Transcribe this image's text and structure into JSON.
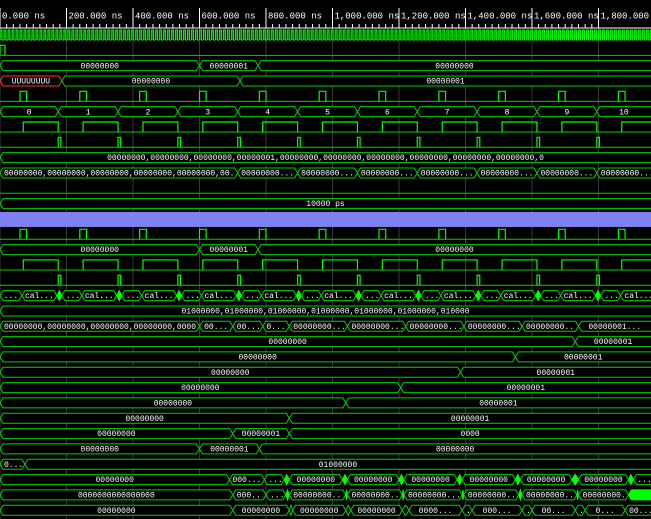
{
  "ruler": {
    "xlim": [
      0,
      1958
    ],
    "ticks": [
      {
        "value": 0,
        "label": "0.000 ns"
      },
      {
        "value": 200,
        "label": "200.000 ns"
      },
      {
        "value": 400,
        "label": "400.000 ns"
      },
      {
        "value": 600,
        "label": "600.000 ns"
      },
      {
        "value": 800,
        "label": "800.000 ns"
      },
      {
        "value": 1000,
        "label": "1,000.000 ns"
      },
      {
        "value": 1200,
        "label": "1,200.000 ns"
      },
      {
        "value": 1400,
        "label": "1,400.000 ns"
      },
      {
        "value": 1600,
        "label": "1,600.000 ns"
      },
      {
        "value": 1800,
        "label": "1,800.000 ns"
      }
    ]
  },
  "rows": [
    {
      "type": "clock",
      "period": 12
    },
    {
      "type": "bit",
      "highs": [
        [
          0,
          15
        ]
      ]
    },
    {
      "type": "bus",
      "segments": [
        {
          "t": 0,
          "label": "00000000"
        },
        {
          "t": 600,
          "label": "00000001"
        },
        {
          "t": 776,
          "label": "00000000"
        }
      ]
    },
    {
      "type": "bus",
      "segments": [
        {
          "t": 0,
          "label": "UUUUUUUU",
          "color": "#ff3030"
        },
        {
          "t": 186,
          "label": "00000000"
        },
        {
          "t": 722,
          "label": "00000001"
        }
      ]
    },
    {
      "type": "bit",
      "highs": [
        [
          60,
          80
        ],
        [
          240,
          260
        ],
        [
          420,
          440
        ],
        [
          600,
          620
        ],
        [
          780,
          800
        ],
        [
          960,
          980
        ],
        [
          1140,
          1160
        ],
        [
          1320,
          1340
        ],
        [
          1500,
          1520
        ],
        [
          1680,
          1700
        ],
        [
          1860,
          1880
        ]
      ]
    },
    {
      "type": "bus",
      "segments": [
        {
          "t": 0,
          "label": "0"
        },
        {
          "t": 175,
          "label": "1"
        },
        {
          "t": 355,
          "label": "2"
        },
        {
          "t": 535,
          "label": "3"
        },
        {
          "t": 715,
          "label": "4"
        },
        {
          "t": 895,
          "label": "5"
        },
        {
          "t": 1075,
          "label": "6"
        },
        {
          "t": 1255,
          "label": "7"
        },
        {
          "t": 1435,
          "label": "8"
        },
        {
          "t": 1615,
          "label": "9"
        },
        {
          "t": 1795,
          "label": "10"
        }
      ]
    },
    {
      "type": "bit",
      "highs": [
        [
          70,
          175
        ],
        [
          250,
          355
        ],
        [
          430,
          535
        ],
        [
          610,
          715
        ],
        [
          790,
          895
        ],
        [
          970,
          1075
        ],
        [
          1150,
          1255
        ],
        [
          1330,
          1435
        ],
        [
          1510,
          1615
        ],
        [
          1690,
          1795
        ],
        [
          1870,
          1975
        ]
      ]
    },
    {
      "type": "bit",
      "highs": [
        [
          175,
          183
        ],
        [
          355,
          363
        ],
        [
          535,
          543
        ],
        [
          715,
          723
        ],
        [
          895,
          903
        ],
        [
          1075,
          1083
        ],
        [
          1255,
          1263
        ],
        [
          1435,
          1443
        ],
        [
          1615,
          1623
        ],
        [
          1795,
          1803
        ]
      ]
    },
    {
      "type": "bus",
      "segments": [
        {
          "t": 0,
          "label": "00000000,00000000,00000000,00000001,00000000,00000000,00000000,00000000,00000000,00000000,0"
        }
      ]
    },
    {
      "type": "bus",
      "segments": [
        {
          "t": 0,
          "label": "00000000,00000000,00000000,00000000,00000000,00..."
        },
        {
          "t": 715,
          "label": "00000000..."
        },
        {
          "t": 895,
          "label": "00000000..."
        },
        {
          "t": 1075,
          "label": "00000000..."
        },
        {
          "t": 1255,
          "label": "00000000..."
        },
        {
          "t": 1435,
          "label": "00000000..."
        },
        {
          "t": 1615,
          "label": "00000000..."
        },
        {
          "t": 1795,
          "label": "00000000..."
        }
      ]
    },
    {
      "type": "bit",
      "highs": []
    },
    {
      "type": "bus",
      "segments": [
        {
          "t": 0,
          "label": "10000 ps"
        }
      ]
    },
    {
      "type": "divider",
      "color": "#8080f0"
    },
    {
      "type": "bit",
      "highs": [
        [
          60,
          80
        ],
        [
          240,
          260
        ],
        [
          420,
          440
        ],
        [
          600,
          620
        ],
        [
          780,
          800
        ],
        [
          960,
          980
        ],
        [
          1140,
          1160
        ],
        [
          1320,
          1340
        ],
        [
          1500,
          1520
        ],
        [
          1680,
          1700
        ],
        [
          1860,
          1880
        ]
      ]
    },
    {
      "type": "bus",
      "segments": [
        {
          "t": 0,
          "label": "00000000"
        },
        {
          "t": 600,
          "label": "00000001"
        },
        {
          "t": 776,
          "label": "00000000"
        }
      ]
    },
    {
      "type": "bit",
      "highs": [
        [
          70,
          175
        ],
        [
          250,
          355
        ],
        [
          430,
          535
        ],
        [
          610,
          715
        ],
        [
          790,
          895
        ],
        [
          970,
          1075
        ],
        [
          1150,
          1255
        ],
        [
          1330,
          1435
        ],
        [
          1510,
          1615
        ],
        [
          1690,
          1795
        ],
        [
          1870,
          1975
        ]
      ]
    },
    {
      "type": "bit",
      "highs": [
        [
          175,
          183
        ],
        [
          355,
          363
        ],
        [
          535,
          543
        ],
        [
          715,
          723
        ],
        [
          895,
          903
        ],
        [
          1075,
          1083
        ],
        [
          1255,
          1263
        ],
        [
          1435,
          1443
        ],
        [
          1615,
          1623
        ],
        [
          1795,
          1803
        ]
      ]
    },
    {
      "type": "bus",
      "segments": [
        {
          "t": 0,
          "label": "..."
        },
        {
          "t": 66,
          "label": "cal..."
        },
        {
          "t": 171,
          "label": null
        },
        {
          "t": 186,
          "label": "..."
        },
        {
          "t": 246,
          "label": "cal..."
        },
        {
          "t": 351,
          "label": null
        },
        {
          "t": 366,
          "label": "..."
        },
        {
          "t": 426,
          "label": "cal..."
        },
        {
          "t": 531,
          "label": null
        },
        {
          "t": 546,
          "label": "..."
        },
        {
          "t": 606,
          "label": "cal..."
        },
        {
          "t": 711,
          "label": null
        },
        {
          "t": 726,
          "label": "..."
        },
        {
          "t": 786,
          "label": "cal..."
        },
        {
          "t": 891,
          "label": null
        },
        {
          "t": 906,
          "label": "..."
        },
        {
          "t": 966,
          "label": "cal..."
        },
        {
          "t": 1071,
          "label": null
        },
        {
          "t": 1086,
          "label": "..."
        },
        {
          "t": 1146,
          "label": "cal..."
        },
        {
          "t": 1251,
          "label": null
        },
        {
          "t": 1266,
          "label": "..."
        },
        {
          "t": 1326,
          "label": "cal..."
        },
        {
          "t": 1431,
          "label": null
        },
        {
          "t": 1446,
          "label": "..."
        },
        {
          "t": 1506,
          "label": "cal..."
        },
        {
          "t": 1611,
          "label": null
        },
        {
          "t": 1626,
          "label": "..."
        },
        {
          "t": 1686,
          "label": "cal..."
        },
        {
          "t": 1791,
          "label": null
        },
        {
          "t": 1806,
          "label": "..."
        },
        {
          "t": 1866,
          "label": "cal..."
        }
      ]
    },
    {
      "type": "bus",
      "segments": [
        {
          "t": 0,
          "label": "01000000,01000000,01000000,01000000,01000000,01000000,010000"
        }
      ]
    },
    {
      "type": "bus",
      "segments": [
        {
          "t": 0,
          "label": "00000000,00000000,00000000,00000000,00000000,000..."
        },
        {
          "t": 600,
          "label": "00..."
        },
        {
          "t": 700,
          "label": "00..."
        },
        {
          "t": 790,
          "label": "0..."
        },
        {
          "t": 870,
          "label": "00000000..."
        },
        {
          "t": 1045,
          "label": "00000000..."
        },
        {
          "t": 1220,
          "label": "00000000..."
        },
        {
          "t": 1395,
          "label": "00000000..."
        },
        {
          "t": 1570,
          "label": "00000000..."
        },
        {
          "t": 1740,
          "label": "00000001..."
        }
      ]
    },
    {
      "type": "bus",
      "segments": [
        {
          "t": 0,
          "label": "00000000"
        },
        {
          "t": 1730,
          "label": "00000001"
        }
      ]
    },
    {
      "type": "bus",
      "segments": [
        {
          "t": 0,
          "label": "00000000"
        },
        {
          "t": 1550,
          "label": "00000001"
        }
      ]
    },
    {
      "type": "bus",
      "segments": [
        {
          "t": 0,
          "label": "00000000"
        },
        {
          "t": 1385,
          "label": "00000001"
        }
      ]
    },
    {
      "type": "bus",
      "segments": [
        {
          "t": 0,
          "label": "00000000"
        },
        {
          "t": 1205,
          "label": "00000001"
        }
      ]
    },
    {
      "type": "bus",
      "segments": [
        {
          "t": 0,
          "label": "00000000"
        },
        {
          "t": 1040,
          "label": "00000001"
        }
      ]
    },
    {
      "type": "bus",
      "segments": [
        {
          "t": 0,
          "label": "00000000"
        },
        {
          "t": 870,
          "label": "00000001"
        }
      ]
    },
    {
      "type": "bus",
      "segments": [
        {
          "t": 0,
          "label": "00000000"
        },
        {
          "t": 700,
          "label": "00000001"
        },
        {
          "t": 870,
          "label": "0000"
        }
      ]
    },
    {
      "type": "bus",
      "segments": [
        {
          "t": 0,
          "label": "00000000"
        },
        {
          "t": 600,
          "label": "00000001"
        },
        {
          "t": 780,
          "label": "00000000"
        }
      ]
    },
    {
      "type": "bus",
      "segments": [
        {
          "t": 0,
          "label": "0..."
        },
        {
          "t": 75,
          "label": "01000000"
        }
      ]
    },
    {
      "type": "bus",
      "segments": [
        {
          "t": 0,
          "label": "00000000"
        },
        {
          "t": 690,
          "label": "000..."
        },
        {
          "t": 795,
          "label": "..."
        },
        {
          "t": 855,
          "label": null
        },
        {
          "t": 870,
          "label": "00000000"
        },
        {
          "t": 1030,
          "label": null
        },
        {
          "t": 1045,
          "label": "00000000"
        },
        {
          "t": 1200,
          "label": null
        },
        {
          "t": 1215,
          "label": "00000000"
        },
        {
          "t": 1375,
          "label": null
        },
        {
          "t": 1390,
          "label": "00000000"
        },
        {
          "t": 1550,
          "label": null
        },
        {
          "t": 1565,
          "label": "00000000"
        },
        {
          "t": 1720,
          "label": null
        },
        {
          "t": 1740,
          "label": "00000000"
        },
        {
          "t": 1890,
          "label": null
        },
        {
          "t": 1905,
          "label": "..."
        }
      ]
    },
    {
      "type": "bus",
      "segments": [
        {
          "t": 0,
          "label": "0000000000000000"
        },
        {
          "t": 700,
          "label": "000..."
        },
        {
          "t": 800,
          "label": "..."
        },
        {
          "t": 860,
          "label": null
        },
        {
          "t": 870,
          "label": "00000000..."
        },
        {
          "t": 1040,
          "label": null
        },
        {
          "t": 1045,
          "label": "00000000..."
        },
        {
          "t": 1210,
          "label": null
        },
        {
          "t": 1215,
          "label": "00000000..."
        },
        {
          "t": 1390,
          "label": null
        },
        {
          "t": 1395,
          "label": "00000000..."
        },
        {
          "t": 1560,
          "label": null
        },
        {
          "t": 1570,
          "label": "00000000..."
        },
        {
          "t": 1735,
          "label": null
        },
        {
          "t": 1740,
          "label": "00000000..."
        },
        {
          "t": 1890,
          "label": null
        }
      ]
    },
    {
      "type": "bus",
      "segments": [
        {
          "t": 0,
          "label": "00000000"
        },
        {
          "t": 700,
          "label": "00000000"
        },
        {
          "t": 870,
          "label": "."
        },
        {
          "t": 880,
          "label": "00000000"
        },
        {
          "t": 1040,
          "label": "."
        },
        {
          "t": 1055,
          "label": "00000000"
        },
        {
          "t": 1210,
          "label": ".."
        },
        {
          "t": 1230,
          "label": "0000..."
        },
        {
          "t": 1390,
          "label": "..."
        },
        {
          "t": 1420,
          "label": "000..."
        },
        {
          "t": 1570,
          "label": "..."
        },
        {
          "t": 1600,
          "label": "00..."
        },
        {
          "t": 1730,
          "label": "..."
        },
        {
          "t": 1760,
          "label": "0..."
        },
        {
          "t": 1880,
          "label": "00..."
        }
      ]
    }
  ]
}
